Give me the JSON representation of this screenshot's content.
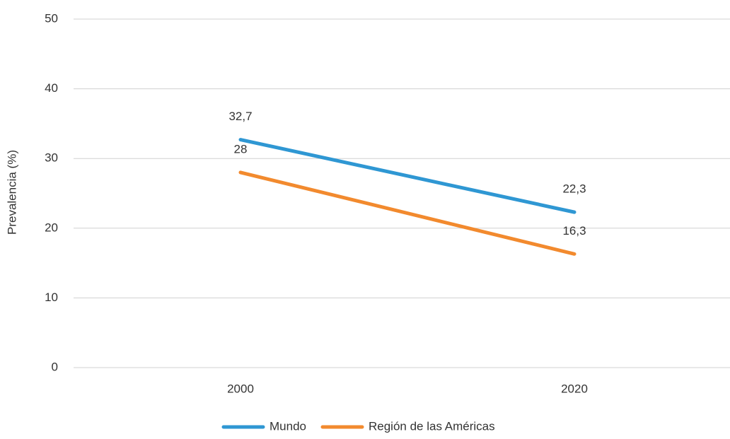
{
  "chart_data": {
    "type": "line",
    "y_label": "Prevalencia (%)",
    "categories": [
      "2000",
      "2020"
    ],
    "series": [
      {
        "name": "Mundo",
        "color": "#2f97d3",
        "values": [
          32.7,
          22.3
        ],
        "value_labels": [
          "32,7",
          "22,3"
        ]
      },
      {
        "name": "Región de las Américas",
        "color": "#f28a2e",
        "values": [
          28,
          16.3
        ],
        "value_labels": [
          "28",
          "16,3"
        ]
      }
    ],
    "ylim": [
      0,
      50
    ],
    "yticks": [
      0,
      10,
      20,
      30,
      40,
      50
    ],
    "grid": true,
    "legend": "bottom"
  }
}
